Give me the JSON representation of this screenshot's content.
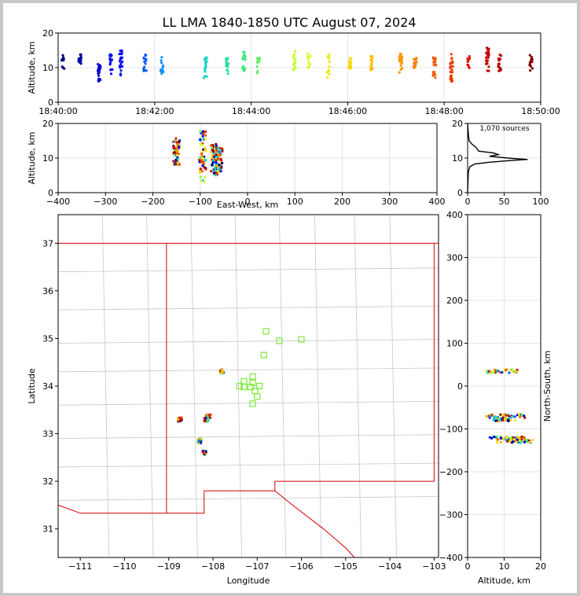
{
  "title": "LL LMA 1840-1850 UTC August 07, 2024",
  "chart_data": [
    {
      "panel": "altitude-time",
      "type": "scatter",
      "ylabel": "Altitude, km",
      "xlim": [
        "18:40:00",
        "18:50:00"
      ],
      "ylim": [
        0,
        20
      ],
      "xticks": [
        "18:40:00",
        "18:42:00",
        "18:44:00",
        "18:46:00",
        "18:48:00",
        "18:50:00"
      ],
      "yticks": [
        "0",
        "10",
        "20"
      ],
      "colormap": [
        "#00006e",
        "#0000ff",
        "#00c8ff",
        "#32e682",
        "#d2ff2d",
        "#ffd200",
        "#ff7800",
        "#d20000",
        "#780000"
      ],
      "bursts": [
        {
          "t": 0.1,
          "alt": [
            8,
            14
          ]
        },
        {
          "t": 0.45,
          "alt": [
            11,
            14
          ]
        },
        {
          "t": 0.85,
          "alt": [
            6,
            11
          ]
        },
        {
          "t": 1.1,
          "alt": [
            8,
            14
          ]
        },
        {
          "t": 1.3,
          "alt": [
            6,
            15
          ]
        },
        {
          "t": 1.8,
          "alt": [
            9,
            14
          ]
        },
        {
          "t": 2.15,
          "alt": [
            8,
            13
          ]
        },
        {
          "t": 3.05,
          "alt": [
            7,
            13
          ]
        },
        {
          "t": 3.5,
          "alt": [
            7,
            13
          ]
        },
        {
          "t": 3.85,
          "alt": [
            9,
            15
          ]
        },
        {
          "t": 4.15,
          "alt": [
            8,
            13
          ]
        },
        {
          "t": 4.9,
          "alt": [
            9,
            15
          ]
        },
        {
          "t": 5.2,
          "alt": [
            10,
            14
          ]
        },
        {
          "t": 5.6,
          "alt": [
            7,
            14
          ]
        },
        {
          "t": 6.05,
          "alt": [
            9,
            13
          ]
        },
        {
          "t": 6.5,
          "alt": [
            9,
            14
          ]
        },
        {
          "t": 7.1,
          "alt": [
            8,
            14
          ]
        },
        {
          "t": 7.4,
          "alt": [
            9,
            13
          ]
        },
        {
          "t": 7.8,
          "alt": [
            7,
            13
          ]
        },
        {
          "t": 8.15,
          "alt": [
            6,
            14
          ]
        },
        {
          "t": 8.5,
          "alt": [
            9,
            14
          ]
        },
        {
          "t": 8.9,
          "alt": [
            9,
            16
          ]
        },
        {
          "t": 9.15,
          "alt": [
            9,
            14
          ]
        },
        {
          "t": 9.8,
          "alt": [
            9,
            14
          ]
        }
      ]
    },
    {
      "panel": "altitude-eastwest",
      "type": "scatter",
      "xlabel": "East-West, km",
      "ylabel": "Altitude, km",
      "xlim": [
        -400,
        400
      ],
      "ylim": [
        0,
        20
      ],
      "xticks": [
        "−400",
        "−300",
        "−200",
        "−100",
        "0",
        "100",
        "200",
        "300",
        "400"
      ],
      "yticks": [
        "0",
        "10",
        "20"
      ],
      "clusters": [
        {
          "x": -150,
          "alt": [
            8,
            16
          ]
        },
        {
          "x": -95,
          "alt": [
            3,
            18
          ]
        },
        {
          "x": -70,
          "alt": [
            5,
            14
          ]
        },
        {
          "x": -60,
          "alt": [
            6,
            13
          ]
        }
      ]
    },
    {
      "panel": "altitude-histogram",
      "type": "line",
      "annotation": "1,070 sources",
      "xlim": [
        0,
        100
      ],
      "ylim": [
        0,
        20
      ],
      "xticks": [
        "0",
        "50",
        "100"
      ],
      "yticks": [
        "0",
        "10",
        "20"
      ],
      "profile": [
        {
          "alt": 0,
          "count": 0
        },
        {
          "alt": 6,
          "count": 1
        },
        {
          "alt": 7.5,
          "count": 3
        },
        {
          "alt": 8.3,
          "count": 10
        },
        {
          "alt": 8.8,
          "count": 30
        },
        {
          "alt": 9.3,
          "count": 60
        },
        {
          "alt": 9.6,
          "count": 82
        },
        {
          "alt": 10,
          "count": 55
        },
        {
          "alt": 10.5,
          "count": 30
        },
        {
          "alt": 11,
          "count": 42
        },
        {
          "alt": 11.5,
          "count": 35
        },
        {
          "alt": 12,
          "count": 15
        },
        {
          "alt": 13,
          "count": 12
        },
        {
          "alt": 14,
          "count": 6
        },
        {
          "alt": 15,
          "count": 2
        },
        {
          "alt": 17,
          "count": 1
        },
        {
          "alt": 20,
          "count": 0
        }
      ]
    },
    {
      "panel": "plan-view-map",
      "type": "scatter",
      "xlabel": "Longitude",
      "ylabel": "Latitude",
      "xlim": [
        -111.5,
        -102.9
      ],
      "ylim": [
        30.4,
        37.6
      ],
      "xticks": [
        "−111",
        "−110",
        "−109",
        "−108",
        "−107",
        "−106",
        "−105",
        "−104",
        "−103"
      ],
      "yticks": [
        "31",
        "32",
        "33",
        "34",
        "35",
        "36",
        "37"
      ],
      "stations": [
        {
          "lon": -106.8,
          "lat": 35.15
        },
        {
          "lon": -106.5,
          "lat": 34.95
        },
        {
          "lon": -106.0,
          "lat": 34.98
        },
        {
          "lon": -106.85,
          "lat": 34.65
        },
        {
          "lon": -107.1,
          "lat": 34.2
        },
        {
          "lon": -107.3,
          "lat": 34.1
        },
        {
          "lon": -107.1,
          "lat": 34.07
        },
        {
          "lon": -107.4,
          "lat": 34.0
        },
        {
          "lon": -107.3,
          "lat": 33.98
        },
        {
          "lon": -107.15,
          "lat": 33.98
        },
        {
          "lon": -106.95,
          "lat": 34.0
        },
        {
          "lon": -107.05,
          "lat": 33.9
        },
        {
          "lon": -107.0,
          "lat": 33.78
        },
        {
          "lon": -107.1,
          "lat": 33.63
        }
      ],
      "clusters": [
        {
          "lon": -107.8,
          "lat": 34.3
        },
        {
          "lon": -108.75,
          "lat": 33.3
        },
        {
          "lon": -108.1,
          "lat": 33.35
        },
        {
          "lon": -108.15,
          "lat": 33.3
        },
        {
          "lon": -108.3,
          "lat": 32.85
        },
        {
          "lon": -108.2,
          "lat": 32.6
        }
      ]
    },
    {
      "panel": "altitude-northsouth",
      "type": "scatter",
      "xlabel": "Altitude, km",
      "ylabel": "North-South, km",
      "xlim": [
        0,
        20
      ],
      "ylim": [
        -400,
        400
      ],
      "xticks": [
        "0",
        "10",
        "20"
      ],
      "yticks": [
        "−400",
        "−300",
        "−200",
        "−100",
        "0",
        "100",
        "200",
        "300",
        "400"
      ],
      "clusters": [
        {
          "y": 35,
          "alt": [
            5,
            14
          ]
        },
        {
          "y": -70,
          "alt": [
            5,
            16
          ]
        },
        {
          "y": -78,
          "alt": [
            7,
            13
          ]
        },
        {
          "y": -122,
          "alt": [
            6,
            16
          ]
        },
        {
          "y": -128,
          "alt": [
            8,
            18
          ]
        }
      ]
    }
  ]
}
